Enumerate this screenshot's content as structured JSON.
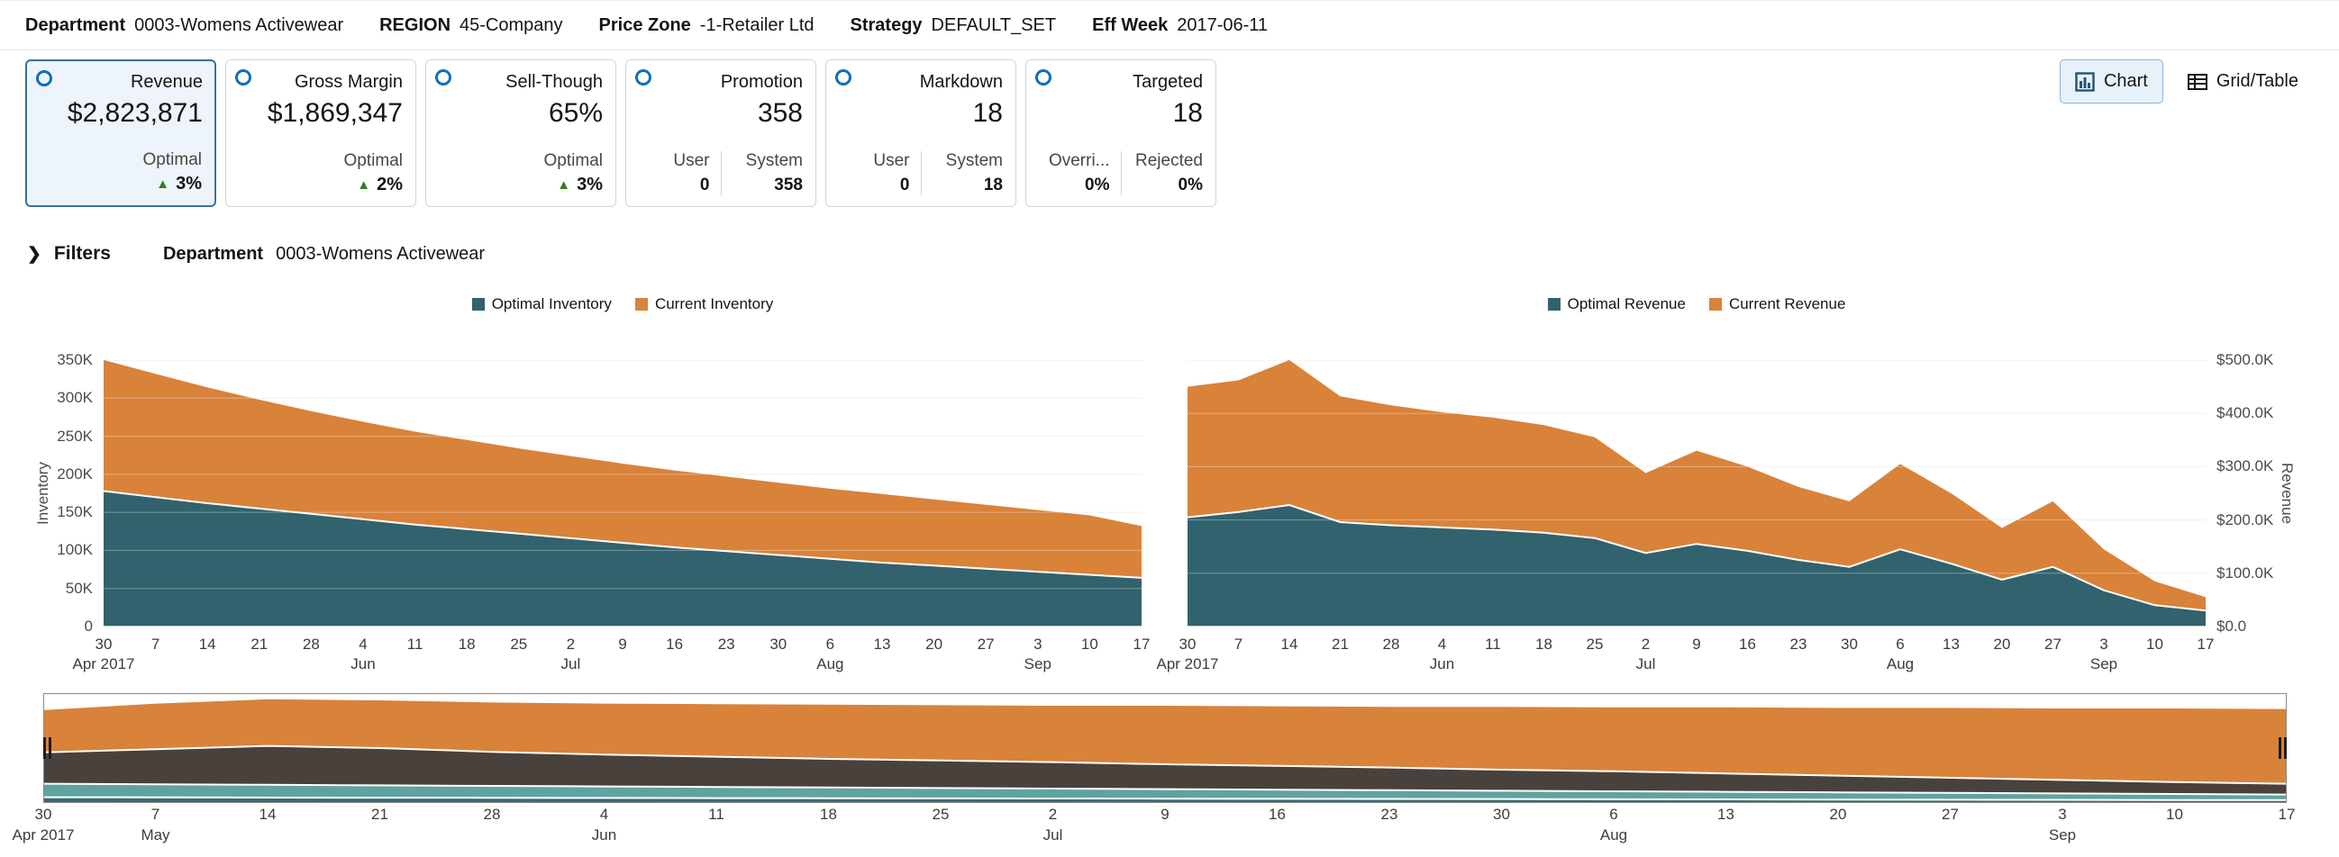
{
  "header": {
    "fields": [
      {
        "label": "Department",
        "value": "0003-Womens Activewear"
      },
      {
        "label": "REGION",
        "value": "45-Company"
      },
      {
        "label": "Price Zone",
        "value": "-1-Retailer Ltd"
      },
      {
        "label": "Strategy",
        "value": "DEFAULT_SET"
      },
      {
        "label": "Eff Week",
        "value": "2017-06-11"
      }
    ]
  },
  "tiles": [
    {
      "title": "Revenue",
      "value": "$2,823,871",
      "selected": true,
      "footer": {
        "type": "single",
        "label": "Optimal",
        "trend": "up",
        "value": "3%"
      }
    },
    {
      "title": "Gross Margin",
      "value": "$1,869,347",
      "selected": false,
      "footer": {
        "type": "single",
        "label": "Optimal",
        "trend": "up",
        "value": "2%"
      }
    },
    {
      "title": "Sell-Though",
      "value": "65%",
      "selected": false,
      "footer": {
        "type": "single",
        "label": "Optimal",
        "trend": "up",
        "value": "3%"
      }
    },
    {
      "title": "Promotion",
      "value": "358",
      "selected": false,
      "footer": {
        "type": "cols",
        "cols": [
          {
            "label": "User",
            "value": "0"
          },
          {
            "label": "System",
            "value": "358"
          }
        ]
      }
    },
    {
      "title": "Markdown",
      "value": "18",
      "selected": false,
      "footer": {
        "type": "cols",
        "cols": [
          {
            "label": "User",
            "value": "0"
          },
          {
            "label": "System",
            "value": "18"
          }
        ]
      }
    },
    {
      "title": "Targeted",
      "value": "18",
      "selected": false,
      "footer": {
        "type": "cols",
        "cols": [
          {
            "label": "Overri...",
            "value": "0%"
          },
          {
            "label": "Rejected",
            "value": "0%"
          }
        ]
      }
    }
  ],
  "view_toggle": {
    "chart_label": "Chart",
    "grid_label": "Grid/Table"
  },
  "filters": {
    "label": "Filters",
    "field_label": "Department",
    "field_value": "0003-Womens Activewear"
  },
  "icons": {
    "chevron_right": "❯",
    "arrow_up": "▲",
    "chart_view": "bar-chart",
    "grid_view": "grid-table"
  },
  "colors": {
    "optimal": "#31626d",
    "current": "#d9823a",
    "overview_dark": "#48413c",
    "overview_teal": "#5fa3a1",
    "accent_blue": "#0e6fb8",
    "positive_green": "#35801f"
  },
  "chart_data": [
    {
      "id": "inventory",
      "type": "area",
      "title": "",
      "ylabel": "Inventory",
      "y_axis_side": "left",
      "ylim": [
        0,
        350000
      ],
      "grid": true,
      "legend_position": "top-center",
      "y_ticks": [
        "350K",
        "300K",
        "250K",
        "200K",
        "150K",
        "100K",
        "50K",
        "0"
      ],
      "x_labels": [
        "30",
        "7",
        "14",
        "21",
        "28",
        "4",
        "11",
        "18",
        "25",
        "2",
        "9",
        "16",
        "23",
        "30",
        "6",
        "13",
        "20",
        "27",
        "3",
        "10",
        "17"
      ],
      "month_labels": [
        {
          "i": 0,
          "label": "Apr 2017"
        },
        {
          "i": 5,
          "label": "Jun"
        },
        {
          "i": 9,
          "label": "Jul"
        },
        {
          "i": 14,
          "label": "Aug"
        },
        {
          "i": 18,
          "label": "Sep"
        }
      ],
      "legend": [
        {
          "name": "Optimal Inventory",
          "color": "#31626d"
        },
        {
          "name": "Current Inventory",
          "color": "#d9823a"
        }
      ],
      "series": [
        {
          "name": "Current Inventory",
          "color": "#d9823a",
          "values": [
            350000,
            332000,
            314000,
            298000,
            283000,
            269000,
            256000,
            245000,
            234000,
            224000,
            214000,
            205000,
            197000,
            189000,
            181000,
            174000,
            167000,
            160000,
            153000,
            146000,
            132000
          ]
        },
        {
          "name": "Optimal Inventory",
          "color": "#31626d",
          "values": [
            178000,
            170000,
            162000,
            155000,
            148000,
            141000,
            134000,
            128000,
            122000,
            116000,
            110000,
            104000,
            99000,
            94000,
            89000,
            84000,
            80000,
            76000,
            72000,
            68000,
            64000
          ]
        }
      ]
    },
    {
      "id": "revenue",
      "type": "area",
      "title": "",
      "ylabel": "Revenue",
      "y_axis_side": "right",
      "ylim": [
        0,
        500000
      ],
      "grid": true,
      "legend_position": "top-center",
      "y_ticks": [
        "$500.0K",
        "$400.0K",
        "$300.0K",
        "$200.0K",
        "$100.0K",
        "$0.0"
      ],
      "x_labels": [
        "30",
        "7",
        "14",
        "21",
        "28",
        "4",
        "11",
        "18",
        "25",
        "2",
        "9",
        "16",
        "23",
        "30",
        "6",
        "13",
        "20",
        "27",
        "3",
        "10",
        "17"
      ],
      "month_labels": [
        {
          "i": 0,
          "label": "Apr 2017"
        },
        {
          "i": 5,
          "label": "Jun"
        },
        {
          "i": 9,
          "label": "Jul"
        },
        {
          "i": 14,
          "label": "Aug"
        },
        {
          "i": 18,
          "label": "Sep"
        }
      ],
      "legend": [
        {
          "name": "Optimal Revenue",
          "color": "#31626d"
        },
        {
          "name": "Current Revenue",
          "color": "#d9823a"
        }
      ],
      "series": [
        {
          "name": "Current Revenue",
          "color": "#d9823a",
          "values": [
            450000,
            462000,
            500000,
            432000,
            415000,
            402000,
            392000,
            378000,
            355000,
            288000,
            330000,
            300000,
            262000,
            235000,
            305000,
            250000,
            185000,
            235000,
            145000,
            85000,
            55000
          ]
        },
        {
          "name": "Optimal Revenue",
          "color": "#31626d",
          "values": [
            205000,
            215000,
            228000,
            196000,
            190000,
            186000,
            182000,
            176000,
            166000,
            138000,
            155000,
            142000,
            125000,
            112000,
            145000,
            118000,
            88000,
            112000,
            68000,
            40000,
            30000
          ]
        }
      ]
    },
    {
      "id": "overview-range-selector",
      "type": "area",
      "normalized": true,
      "x_labels": [
        "30",
        "7",
        "14",
        "21",
        "28",
        "4",
        "11",
        "18",
        "25",
        "2",
        "9",
        "16",
        "23",
        "30",
        "6",
        "13",
        "20",
        "27",
        "3",
        "10",
        "17"
      ],
      "month_labels": [
        {
          "i": 0,
          "label": "Apr 2017"
        },
        {
          "i": 1,
          "label": "May"
        },
        {
          "i": 5,
          "label": "Jun"
        },
        {
          "i": 9,
          "label": "Jul"
        },
        {
          "i": 14,
          "label": "Aug"
        },
        {
          "i": 18,
          "label": "Sep"
        }
      ],
      "series": [
        {
          "name": "upper-band",
          "color": "#d9823a",
          "values": [
            0.86,
            0.92,
            0.96,
            0.95,
            0.93,
            0.92,
            0.915,
            0.91,
            0.905,
            0.9,
            0.9,
            0.895,
            0.89,
            0.89,
            0.885,
            0.885,
            0.88,
            0.88,
            0.875,
            0.875,
            0.87
          ]
        },
        {
          "name": "middle-band",
          "color": "#48413c",
          "values": [
            0.46,
            0.49,
            0.52,
            0.5,
            0.465,
            0.44,
            0.42,
            0.4,
            0.385,
            0.37,
            0.35,
            0.335,
            0.32,
            0.3,
            0.285,
            0.265,
            0.245,
            0.225,
            0.205,
            0.185,
            0.17
          ]
        },
        {
          "name": "lower-band",
          "color": "#5fa3a1",
          "values": [
            0.17,
            0.165,
            0.16,
            0.155,
            0.15,
            0.145,
            0.14,
            0.135,
            0.13,
            0.125,
            0.12,
            0.115,
            0.11,
            0.105,
            0.1,
            0.095,
            0.09,
            0.085,
            0.08,
            0.075,
            0.07
          ]
        },
        {
          "name": "baseline-band",
          "color": "#3b6b74",
          "values": [
            0.045,
            0.044,
            0.042,
            0.041,
            0.04,
            0.038,
            0.037,
            0.036,
            0.034,
            0.033,
            0.032,
            0.03,
            0.029,
            0.028,
            0.026,
            0.025,
            0.023,
            0.022,
            0.021,
            0.019,
            0.018
          ]
        }
      ]
    }
  ]
}
